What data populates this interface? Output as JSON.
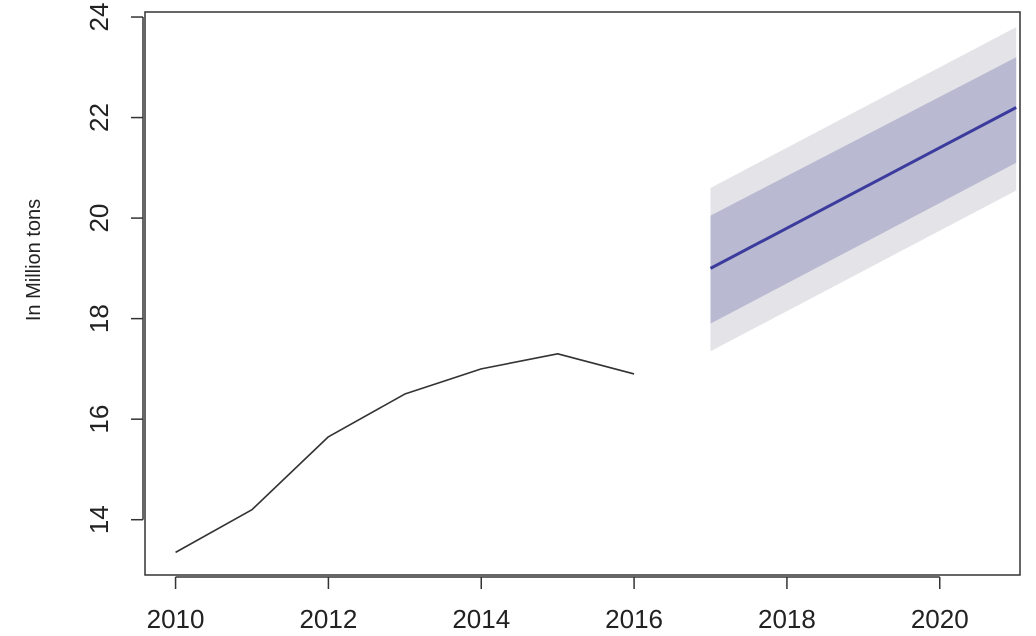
{
  "chart_data": {
    "type": "line",
    "title": "",
    "xlabel": "",
    "ylabel": "In Million tons",
    "xlim": [
      2009.6,
      2021.05
    ],
    "ylim": [
      12.9,
      24.1
    ],
    "x_ticks": [
      2010,
      2012,
      2014,
      2016,
      2018,
      2020
    ],
    "y_ticks": [
      14,
      16,
      18,
      20,
      22,
      24
    ],
    "grid": false,
    "series": [
      {
        "role": "observed",
        "color": "#333333",
        "x": [
          2010,
          2011,
          2012,
          2013,
          2014,
          2015,
          2016
        ],
        "y": [
          13.35,
          14.2,
          15.65,
          16.5,
          17.0,
          17.3,
          16.9
        ]
      },
      {
        "role": "forecast",
        "color": "#3b3b9e",
        "x": [
          2017,
          2018,
          2019,
          2020,
          2021
        ],
        "y": [
          19.0,
          19.8,
          20.6,
          21.4,
          22.2
        ]
      }
    ],
    "bands": [
      {
        "level": "95%",
        "color": "#e3e3e8",
        "x": [
          2017,
          2021
        ],
        "lower": [
          17.35,
          20.55
        ],
        "upper": [
          20.6,
          23.8
        ]
      },
      {
        "level": "80%",
        "color": "#b9b9d2",
        "x": [
          2017,
          2021
        ],
        "lower": [
          17.9,
          21.1
        ],
        "upper": [
          20.05,
          23.2
        ]
      }
    ]
  }
}
